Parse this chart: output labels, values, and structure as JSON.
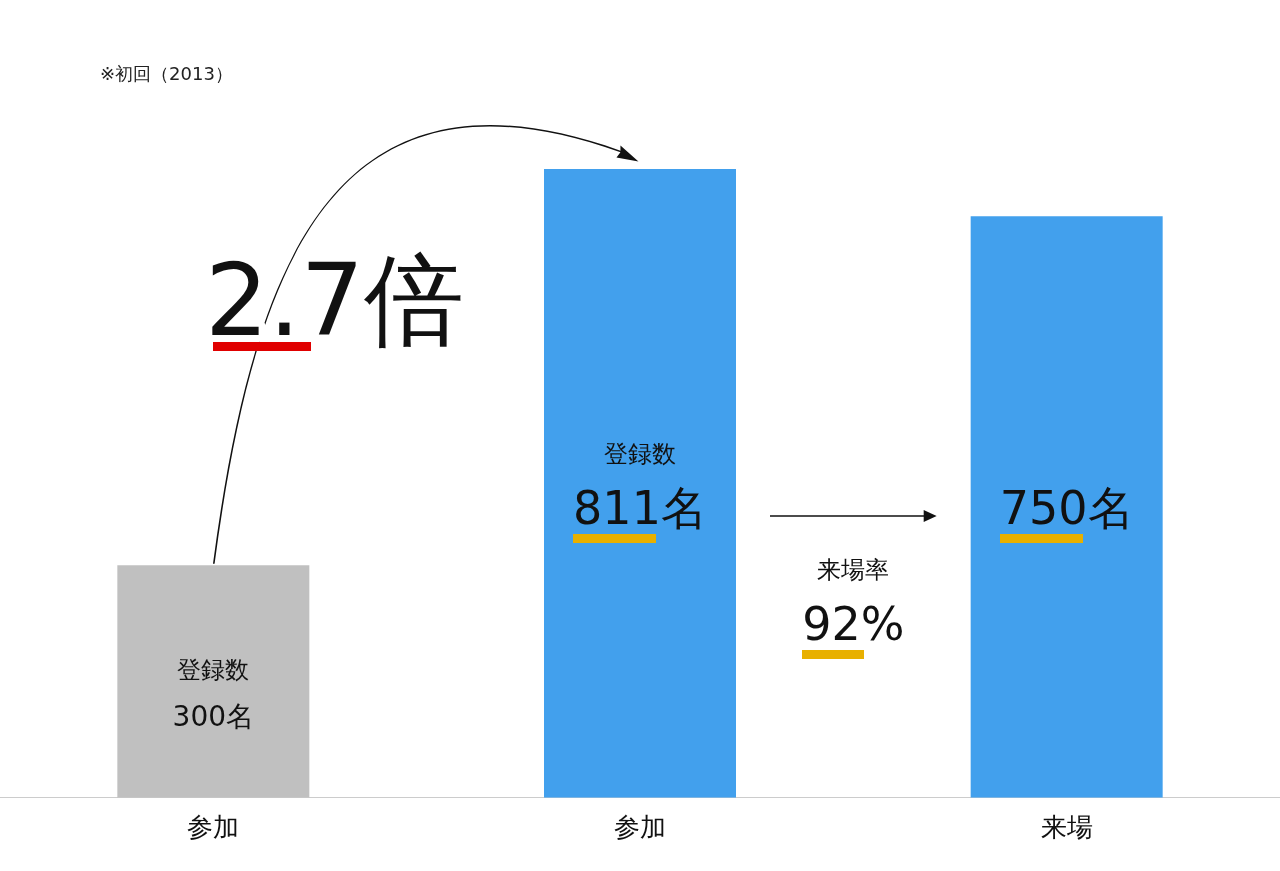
{
  "chart_data": {
    "type": "bar",
    "subtitle": "※初回（2013）",
    "categories": [
      "参加",
      "参加",
      "来場"
    ],
    "values": [
      300,
      811,
      750
    ],
    "colors": [
      "#c0c0c0",
      "#42a0ed",
      "#42a0ed"
    ],
    "value_labels": [
      "300名",
      "811名",
      "750名"
    ],
    "annotations": [
      "登録数",
      "登録数",
      "2.7倍",
      "来場率",
      "92%"
    ],
    "grid": false,
    "legend": false
  }
}
